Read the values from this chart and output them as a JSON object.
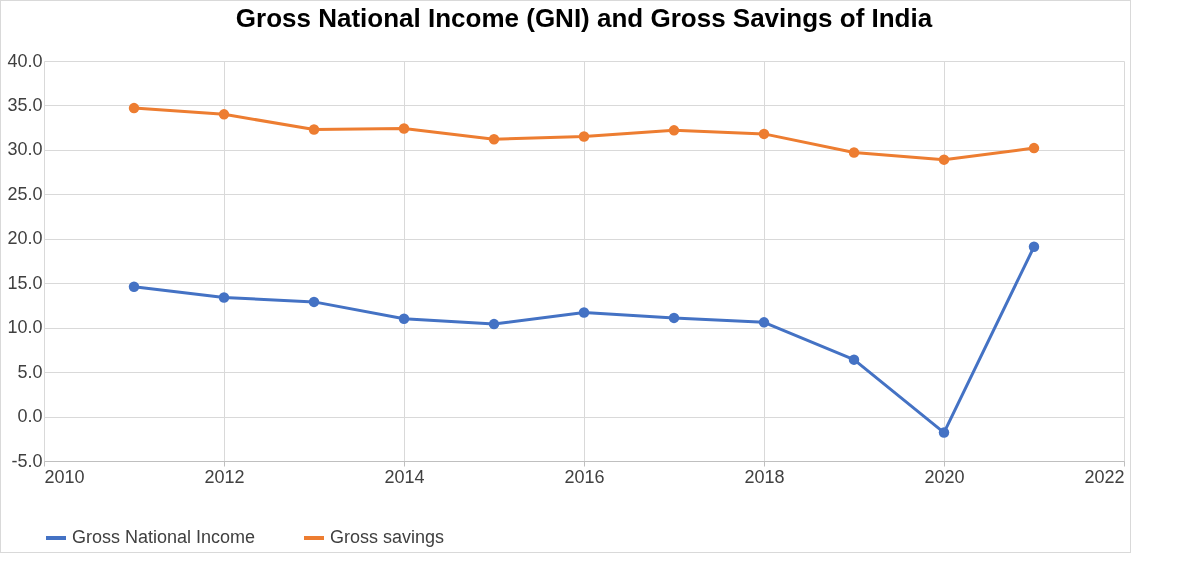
{
  "chart_data": {
    "type": "line",
    "title": "Gross National Income (GNI) and Gross Savings of India",
    "x": [
      2011,
      2012,
      2013,
      2014,
      2015,
      2016,
      2017,
      2018,
      2019,
      2020,
      2021
    ],
    "series": [
      {
        "name": "Gross National Income",
        "color": "#4472c4",
        "values": [
          14.6,
          13.4,
          12.9,
          11.0,
          10.4,
          11.7,
          11.1,
          10.6,
          6.4,
          -1.8,
          19.1
        ]
      },
      {
        "name": "Gross savings",
        "color": "#ed7d31",
        "values": [
          34.7,
          34.0,
          32.3,
          32.4,
          31.2,
          31.5,
          32.2,
          31.8,
          29.7,
          28.9,
          30.2
        ]
      }
    ],
    "xlim": [
      2010,
      2022
    ],
    "xticks": [
      2010,
      2012,
      2014,
      2016,
      2018,
      2020,
      2022
    ],
    "ylim": [
      -5,
      40
    ],
    "yticks": [
      {
        "value": -5,
        "label": "-5.0"
      },
      {
        "value": 0,
        "label": "0.0"
      },
      {
        "value": 5,
        "label": "5.0"
      },
      {
        "value": 10,
        "label": "10.0"
      },
      {
        "value": 15,
        "label": "15.0"
      },
      {
        "value": 20,
        "label": "20.0"
      },
      {
        "value": 25,
        "label": "25.0"
      },
      {
        "value": 30,
        "label": "30.0"
      },
      {
        "value": 35,
        "label": "35.0"
      },
      {
        "value": 40,
        "label": "40.0"
      }
    ],
    "grid": true,
    "legend": "bottom",
    "marker": "circle",
    "line_style": "solid"
  }
}
